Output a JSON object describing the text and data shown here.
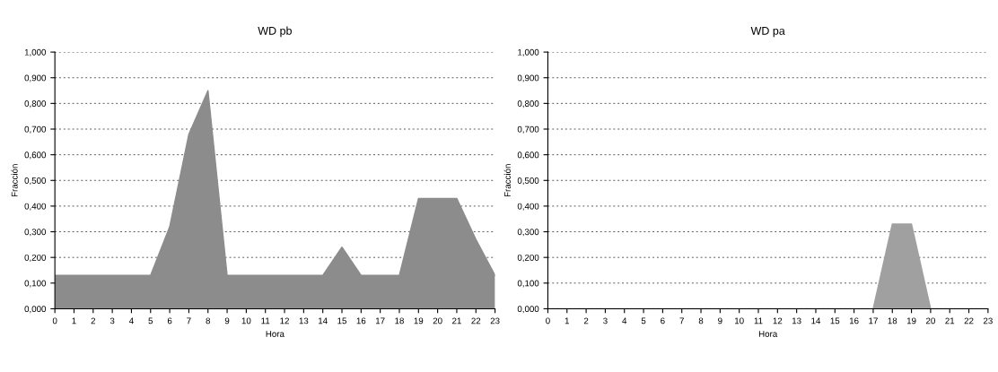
{
  "chart_data": [
    {
      "type": "area",
      "title": "WD pb",
      "xlabel": "Hora",
      "ylabel": "Fracción",
      "x": [
        0,
        1,
        2,
        3,
        4,
        5,
        6,
        7,
        8,
        9,
        10,
        11,
        12,
        13,
        14,
        15,
        16,
        17,
        18,
        19,
        20,
        21,
        22,
        23
      ],
      "series": [
        {
          "color": "#8c8c8c",
          "values": [
            0.13,
            0.13,
            0.13,
            0.13,
            0.13,
            0.13,
            0.32,
            0.68,
            0.85,
            0.13,
            0.13,
            0.13,
            0.13,
            0.13,
            0.13,
            0.24,
            0.13,
            0.13,
            0.13,
            0.43,
            0.43,
            0.43,
            0.27,
            0.13
          ]
        }
      ],
      "xlim": [
        0,
        23
      ],
      "xticks": [
        0,
        1,
        2,
        3,
        4,
        5,
        6,
        7,
        8,
        9,
        10,
        11,
        12,
        13,
        14,
        15,
        16,
        17,
        18,
        19,
        20,
        21,
        22,
        23
      ],
      "ylim": [
        0,
        1
      ],
      "yticks": [
        {
          "value": 0,
          "label": "0,000"
        },
        {
          "value": 0.1,
          "label": "0,100"
        },
        {
          "value": 0.2,
          "label": "0,200"
        },
        {
          "value": 0.3,
          "label": "0,300"
        },
        {
          "value": 0.4,
          "label": "0,400"
        },
        {
          "value": 0.5,
          "label": "0,500"
        },
        {
          "value": 0.6,
          "label": "0,600"
        },
        {
          "value": 0.7,
          "label": "0,700"
        },
        {
          "value": 0.8,
          "label": "0,800"
        },
        {
          "value": 0.9,
          "label": "0,900"
        },
        {
          "value": 1,
          "label": "1,000"
        }
      ],
      "grid": "y"
    },
    {
      "type": "area",
      "title": "WD pa",
      "xlabel": "Hora",
      "ylabel": "Fracción",
      "x": [
        0,
        1,
        2,
        3,
        4,
        5,
        6,
        7,
        8,
        9,
        10,
        11,
        12,
        13,
        14,
        15,
        16,
        17,
        18,
        19,
        20,
        21,
        22,
        23
      ],
      "series": [
        {
          "color": "#a0a0a0",
          "values": [
            0,
            0,
            0,
            0,
            0,
            0,
            0,
            0,
            0,
            0,
            0,
            0,
            0,
            0,
            0,
            0,
            0,
            0,
            0.33,
            0.33,
            0,
            0,
            0,
            0
          ]
        }
      ],
      "xlim": [
        0,
        23
      ],
      "xticks": [
        0,
        1,
        2,
        3,
        4,
        5,
        6,
        7,
        8,
        9,
        10,
        11,
        12,
        13,
        14,
        15,
        16,
        17,
        18,
        19,
        20,
        21,
        22,
        23
      ],
      "ylim": [
        0,
        1
      ],
      "yticks": [
        {
          "value": 0,
          "label": "0,000"
        },
        {
          "value": 0.1,
          "label": "0,100"
        },
        {
          "value": 0.2,
          "label": "0,200"
        },
        {
          "value": 0.3,
          "label": "0,300"
        },
        {
          "value": 0.4,
          "label": "0,400"
        },
        {
          "value": 0.5,
          "label": "0,500"
        },
        {
          "value": 0.6,
          "label": "0,600"
        },
        {
          "value": 0.7,
          "label": "0,700"
        },
        {
          "value": 0.8,
          "label": "0,800"
        },
        {
          "value": 0.9,
          "label": "0,900"
        },
        {
          "value": 1,
          "label": "1,000"
        }
      ],
      "grid": "y"
    }
  ]
}
